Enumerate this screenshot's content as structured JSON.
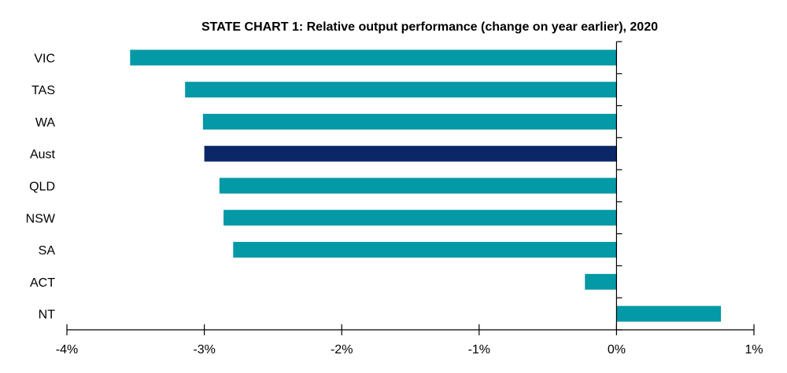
{
  "chart_data": {
    "type": "bar",
    "orientation": "horizontal",
    "title": "STATE CHART 1: Relative output performance (change on year earlier), 2020",
    "categories": [
      "VIC",
      "TAS",
      "WA",
      "Aust",
      "QLD",
      "NSW",
      "SA",
      "ACT",
      "NT"
    ],
    "values": [
      -3.54,
      -3.14,
      -3.01,
      -3.0,
      -2.89,
      -2.86,
      -2.79,
      -0.23,
      0.76
    ],
    "highlight_category": "Aust",
    "xlim": [
      -4,
      1
    ],
    "x_ticks": [
      -4,
      -3,
      -2,
      -1,
      0,
      1
    ],
    "x_tick_labels": [
      "-4%",
      "-3%",
      "-2%",
      "-1%",
      "0%",
      "1%"
    ],
    "colors": {
      "bar": "#0399a6",
      "highlight": "#0b2768"
    },
    "grid": false,
    "legend": "none"
  }
}
